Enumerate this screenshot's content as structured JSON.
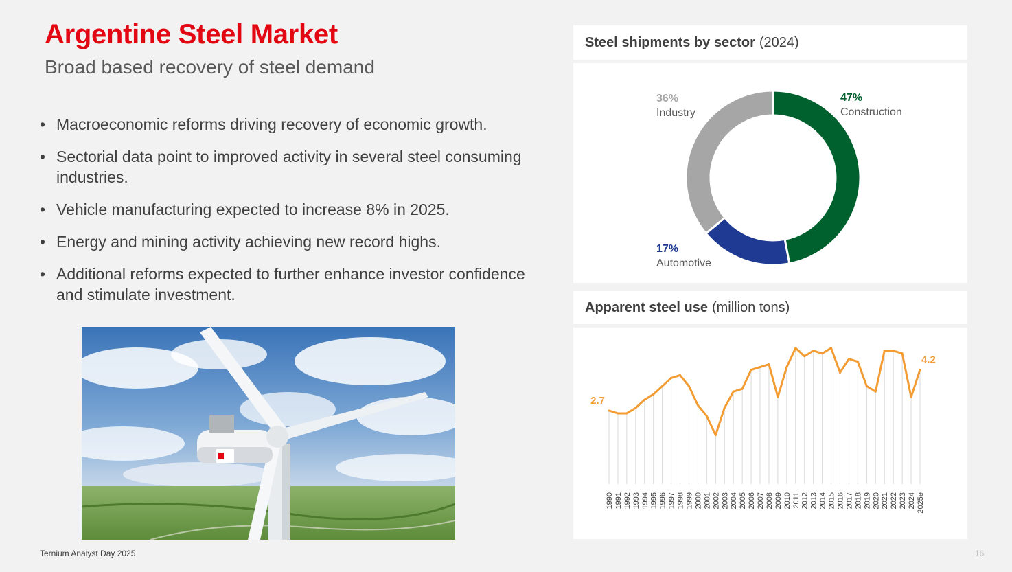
{
  "header": {
    "title": "Argentine Steel Market",
    "subtitle": "Broad based recovery of steel demand"
  },
  "bullets": [
    "Macroeconomic reforms driving recovery of economic growth.",
    "Sectorial data point to improved activity in several steel consuming industries.",
    "Vehicle manufacturing expected to increase 8% in 2025.",
    "Energy and mining activity achieving new record highs.",
    "Additional reforms expected to further enhance investor confidence and stimulate investment."
  ],
  "bullet_symbol": "•",
  "photo": {
    "icon": "wind-turbine-photo"
  },
  "footer": {
    "left": "Ternium Analyst Day 2025",
    "page_number": "16"
  },
  "chart_data": [
    {
      "type": "pie",
      "title_bold": "Steel shipments by sector",
      "title_light": "(2024)",
      "slices": [
        {
          "label": "Construction",
          "pct_label": "47%",
          "value": 47,
          "color": "#00612e"
        },
        {
          "label": "Automotive",
          "pct_label": "17%",
          "value": 17,
          "color": "#1f3a93"
        },
        {
          "label": "Industry",
          "pct_label": "36%",
          "value": 36,
          "color": "#a6a6a6"
        }
      ]
    },
    {
      "type": "line",
      "title_bold": "Apparent steel use",
      "title_light": "(million tons)",
      "color": "#f39c34",
      "categories": [
        "1990",
        "1991",
        "1992",
        "1993",
        "1994",
        "1995",
        "1996",
        "1997",
        "1998",
        "1999",
        "2000",
        "2001",
        "2002",
        "2003",
        "2004",
        "2005",
        "2006",
        "2007",
        "2008",
        "2009",
        "2010",
        "2011",
        "2012",
        "2013",
        "2014",
        "2015",
        "2016",
        "2017",
        "2018",
        "2019",
        "2020",
        "2021",
        "2022",
        "2023",
        "2024",
        "2025e"
      ],
      "values": [
        2.7,
        2.6,
        2.6,
        2.8,
        3.1,
        3.3,
        3.6,
        3.9,
        4.0,
        3.6,
        2.9,
        2.5,
        1.8,
        2.8,
        3.4,
        3.5,
        4.2,
        4.3,
        4.4,
        3.2,
        4.3,
        5.0,
        4.7,
        4.9,
        4.8,
        5.0,
        4.1,
        4.6,
        4.5,
        3.6,
        3.4,
        4.9,
        4.9,
        4.8,
        3.2,
        4.2
      ],
      "data_labels": [
        {
          "index": 0,
          "text": "2.7"
        },
        {
          "index": 35,
          "text": "4.2"
        }
      ],
      "ylim": [
        0,
        5.5
      ]
    }
  ]
}
